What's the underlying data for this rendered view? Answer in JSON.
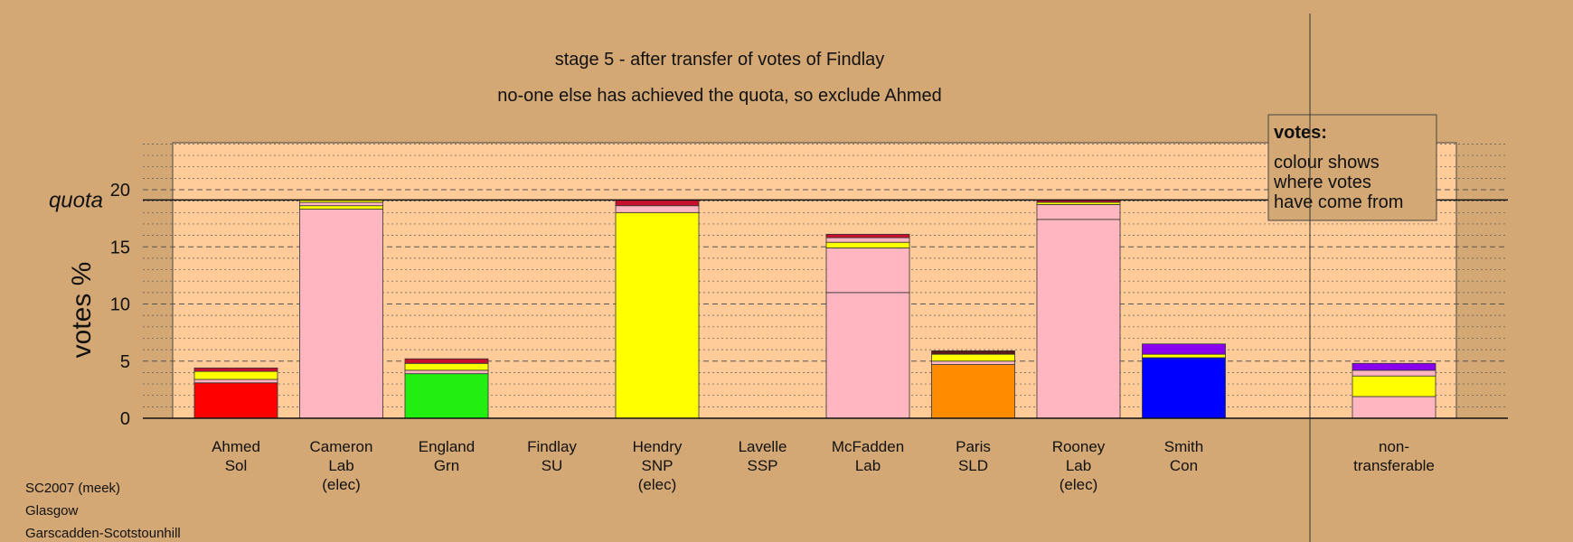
{
  "chart_data": {
    "type": "bar",
    "stacked": true,
    "title": "stage 5 - after transfer of votes of Findlay",
    "subtitle": "no-one else has achieved the quota, so exclude Ahmed",
    "ylabel": "votes %",
    "ylim": [
      0,
      24
    ],
    "yticks": [
      0,
      5,
      10,
      15,
      20
    ],
    "quota": 19.1,
    "quota_label": "quota",
    "grid": true,
    "categories": [
      {
        "lines": [
          "Ahmed",
          "Sol"
        ],
        "segments": [
          {
            "value": 3.1,
            "color": "#ff0000"
          },
          {
            "value": 0.3,
            "color": "#ffb6c1"
          },
          {
            "value": 0.7,
            "color": "#ffff00"
          },
          {
            "value": 0.3,
            "color": "#c8102e"
          }
        ]
      },
      {
        "lines": [
          "Cameron",
          "Lab",
          "(elec)"
        ],
        "segments": [
          {
            "value": 18.3,
            "color": "#ffb6c1"
          },
          {
            "value": 0.3,
            "color": "#ffff00"
          },
          {
            "value": 0.3,
            "color": "#ffb6c1"
          },
          {
            "value": 0.2,
            "color": "#ffff00"
          }
        ]
      },
      {
        "lines": [
          "England",
          "Grn"
        ],
        "segments": [
          {
            "value": 3.9,
            "color": "#22ee11"
          },
          {
            "value": 0.3,
            "color": "#ffb6c1"
          },
          {
            "value": 0.6,
            "color": "#ffff00"
          },
          {
            "value": 0.4,
            "color": "#c8102e"
          }
        ]
      },
      {
        "lines": [
          "Findlay",
          "SU"
        ],
        "segments": []
      },
      {
        "lines": [
          "Hendry",
          "SNP",
          "(elec)"
        ],
        "segments": [
          {
            "value": 18.0,
            "color": "#ffff00"
          },
          {
            "value": 0.6,
            "color": "#ffb6c1"
          },
          {
            "value": 0.5,
            "color": "#c8102e"
          }
        ]
      },
      {
        "lines": [
          "Lavelle",
          "SSP"
        ],
        "segments": []
      },
      {
        "lines": [
          "McFadden",
          "Lab"
        ],
        "segments": [
          {
            "value": 11.0,
            "color": "#ffb6c1"
          },
          {
            "value": 3.9,
            "color": "#ffb6c1"
          },
          {
            "value": 0.5,
            "color": "#ffff00"
          },
          {
            "value": 0.4,
            "color": "#ffb6c1"
          },
          {
            "value": 0.3,
            "color": "#c8102e"
          }
        ]
      },
      {
        "lines": [
          "Paris",
          "SLD"
        ],
        "segments": [
          {
            "value": 4.7,
            "color": "#ff8c00"
          },
          {
            "value": 0.3,
            "color": "#ffb6c1"
          },
          {
            "value": 0.6,
            "color": "#ffff00"
          },
          {
            "value": 0.3,
            "color": "#5a1a1a"
          }
        ]
      },
      {
        "lines": [
          "Rooney",
          "Lab",
          "(elec)"
        ],
        "segments": [
          {
            "value": 17.4,
            "color": "#ffb6c1"
          },
          {
            "value": 1.3,
            "color": "#ffb6c1"
          },
          {
            "value": 0.2,
            "color": "#ffff00"
          },
          {
            "value": 0.2,
            "color": "#c8102e"
          }
        ]
      },
      {
        "lines": [
          "Smith",
          "Con"
        ],
        "segments": [
          {
            "value": 5.3,
            "color": "#0000ff"
          },
          {
            "value": 0.3,
            "color": "#ffff00"
          },
          {
            "value": 0.9,
            "color": "#8800ee"
          }
        ]
      }
    ],
    "nontransferable": {
      "lines": [
        "non-",
        "transferable"
      ],
      "segments": [
        {
          "value": 1.9,
          "color": "#ffb6c1"
        },
        {
          "value": 1.8,
          "color": "#ffff00"
        },
        {
          "value": 0.5,
          "color": "#ffb6c1"
        },
        {
          "value": 0.6,
          "color": "#8800ee"
        }
      ]
    },
    "legend": {
      "title": "votes:",
      "lines": [
        "colour shows",
        "where votes",
        "have come from"
      ],
      "placement": "top-right"
    }
  },
  "footer": [
    "SC2007 (meek)",
    "Glasgow",
    "Garscadden-Scotstounhill"
  ]
}
